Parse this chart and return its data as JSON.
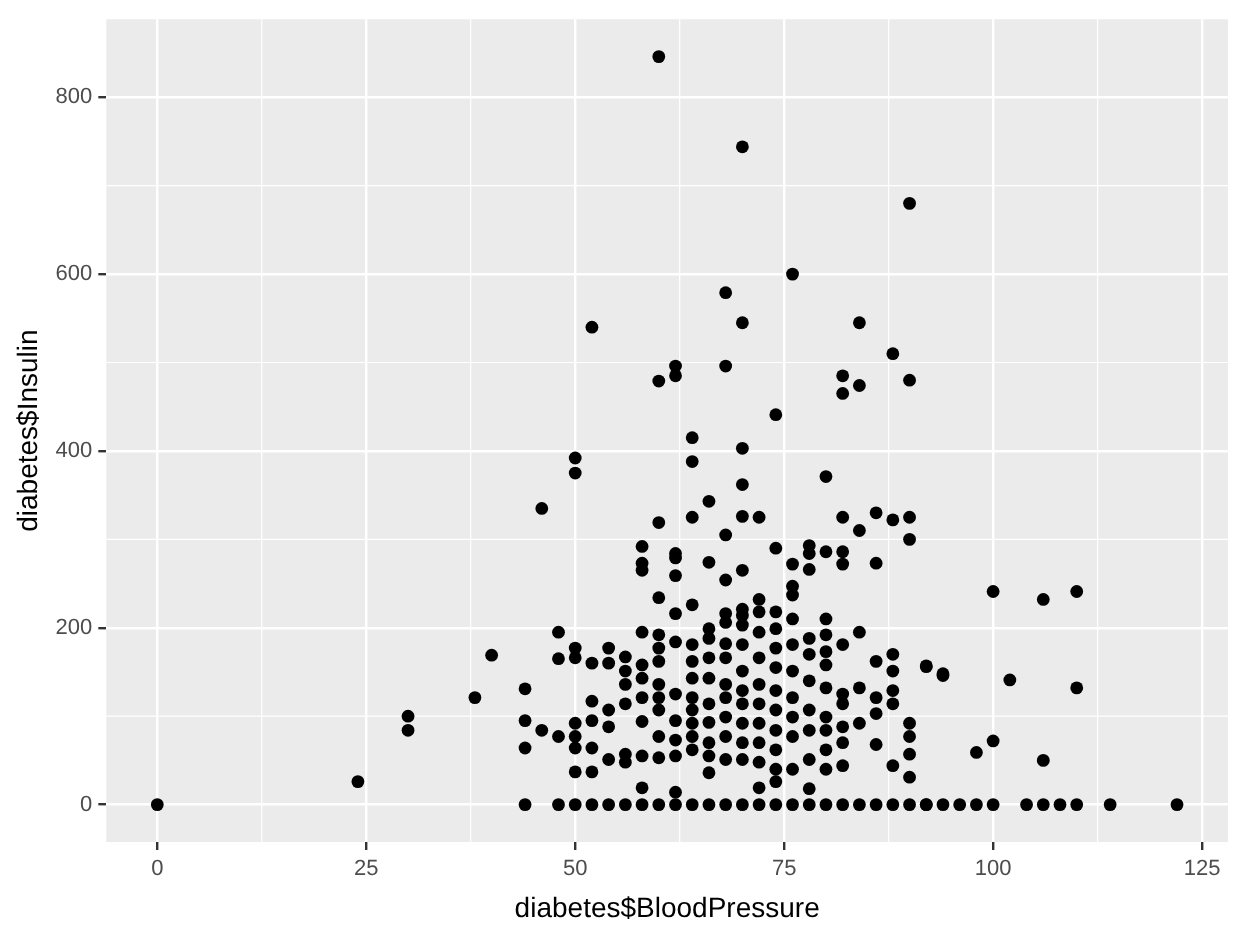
{
  "chart_data": {
    "type": "scatter",
    "xlabel": "diabetes$BloodPressure",
    "ylabel": "diabetes$Insulin",
    "color": "#000000",
    "marker": "circle",
    "grid": true,
    "legend": false,
    "xlim": [
      -6.1,
      128.1
    ],
    "ylim": [
      -42.3,
      888.3
    ],
    "xticks": [
      0,
      25,
      50,
      75,
      100,
      125
    ],
    "yticks": [
      0,
      200,
      400,
      600,
      800
    ],
    "x": [
      60,
      70,
      90,
      76,
      68,
      52,
      70,
      84,
      88,
      62,
      60,
      62,
      68,
      82,
      84,
      90,
      82,
      74,
      64,
      64,
      50,
      50,
      70,
      70,
      80,
      46,
      66,
      64,
      60,
      70,
      72,
      68,
      82,
      84,
      86,
      88,
      90,
      90,
      74,
      58,
      58,
      58,
      62,
      62,
      62,
      66,
      70,
      76,
      78,
      78,
      78,
      76,
      76,
      80,
      82,
      82,
      86,
      68,
      60,
      64,
      62,
      72,
      70,
      68,
      0,
      24,
      30,
      30,
      38,
      40,
      100,
      106,
      110,
      92,
      94,
      102,
      110,
      98,
      100,
      106,
      92,
      96,
      98,
      100,
      104,
      106,
      108,
      110,
      114,
      122,
      44,
      44,
      44,
      44,
      46,
      48,
      48,
      48,
      48,
      50,
      50,
      50,
      50,
      50,
      50,
      50,
      52,
      52,
      52,
      52,
      52,
      52,
      54,
      54,
      54,
      54,
      54,
      54,
      56,
      56,
      56,
      56,
      56,
      56,
      56,
      58,
      58,
      58,
      58,
      58,
      58,
      58,
      58,
      60,
      60,
      60,
      60,
      60,
      60,
      60,
      60,
      60,
      62,
      62,
      62,
      62,
      62,
      62,
      62,
      64,
      64,
      64,
      64,
      64,
      64,
      64,
      64,
      64,
      66,
      66,
      66,
      66,
      66,
      66,
      66,
      66,
      66,
      66,
      68,
      68,
      68,
      68,
      68,
      68,
      68,
      68,
      68,
      70,
      70,
      70,
      70,
      70,
      70,
      70,
      70,
      70,
      70,
      72,
      72,
      72,
      72,
      72,
      72,
      72,
      72,
      72,
      72,
      74,
      74,
      74,
      74,
      74,
      74,
      74,
      74,
      74,
      74,
      74,
      76,
      76,
      76,
      76,
      76,
      76,
      76,
      76,
      78,
      78,
      78,
      78,
      78,
      78,
      78,
      78,
      80,
      80,
      80,
      80,
      80,
      80,
      80,
      80,
      80,
      80,
      82,
      82,
      82,
      82,
      82,
      82,
      82,
      84,
      84,
      84,
      84,
      86,
      86,
      86,
      86,
      86,
      88,
      88,
      88,
      88,
      88,
      88,
      90,
      90,
      90,
      90,
      90,
      92,
      92,
      94,
      94
    ],
    "values": [
      846,
      744,
      680,
      600,
      579,
      540,
      545,
      545,
      510,
      496,
      479,
      485,
      496,
      485,
      474,
      480,
      465,
      441,
      415,
      388,
      392,
      375,
      403,
      362,
      371,
      335,
      343,
      325,
      319,
      326,
      325,
      305,
      325,
      310,
      330,
      322,
      325,
      300,
      290,
      292,
      273,
      265,
      284,
      279,
      259,
      274,
      265,
      272,
      293,
      284,
      266,
      247,
      237,
      286,
      286,
      272,
      273,
      254,
      234,
      226,
      216,
      232,
      221,
      216,
      0,
      26,
      100,
      84,
      121,
      169,
      241,
      232,
      241,
      156,
      146,
      141,
      132,
      59,
      72,
      50,
      0,
      0,
      0,
      0,
      0,
      0,
      0,
      0,
      0,
      0,
      131,
      95,
      64,
      0,
      84,
      195,
      165,
      77,
      0,
      177,
      166,
      92,
      77,
      64,
      37,
      0,
      160,
      117,
      95,
      64,
      37,
      0,
      177,
      160,
      107,
      88,
      51,
      0,
      167,
      151,
      136,
      114,
      57,
      48,
      0,
      195,
      158,
      143,
      121,
      94,
      55,
      19,
      0,
      192,
      177,
      162,
      136,
      121,
      107,
      77,
      53,
      0,
      184,
      125,
      95,
      73,
      55,
      14,
      0,
      181,
      162,
      143,
      121,
      107,
      92,
      77,
      62,
      0,
      199,
      188,
      166,
      143,
      114,
      93,
      70,
      55,
      36,
      0,
      206,
      182,
      166,
      136,
      121,
      99,
      77,
      51,
      0,
      214,
      203,
      181,
      151,
      129,
      114,
      92,
      70,
      51,
      0,
      218,
      195,
      166,
      136,
      114,
      92,
      70,
      48,
      19,
      0,
      218,
      199,
      177,
      155,
      129,
      107,
      84,
      62,
      40,
      26,
      0,
      210,
      181,
      151,
      121,
      99,
      77,
      40,
      0,
      188,
      170,
      140,
      107,
      84,
      51,
      18,
      0,
      210,
      192,
      173,
      158,
      132,
      99,
      84,
      62,
      40,
      0,
      181,
      125,
      114,
      88,
      70,
      44,
      0,
      195,
      132,
      92,
      0,
      162,
      121,
      103,
      68,
      0,
      170,
      151,
      129,
      114,
      44,
      0,
      92,
      77,
      57,
      31,
      0,
      157,
      0,
      148,
      0
    ]
  }
}
